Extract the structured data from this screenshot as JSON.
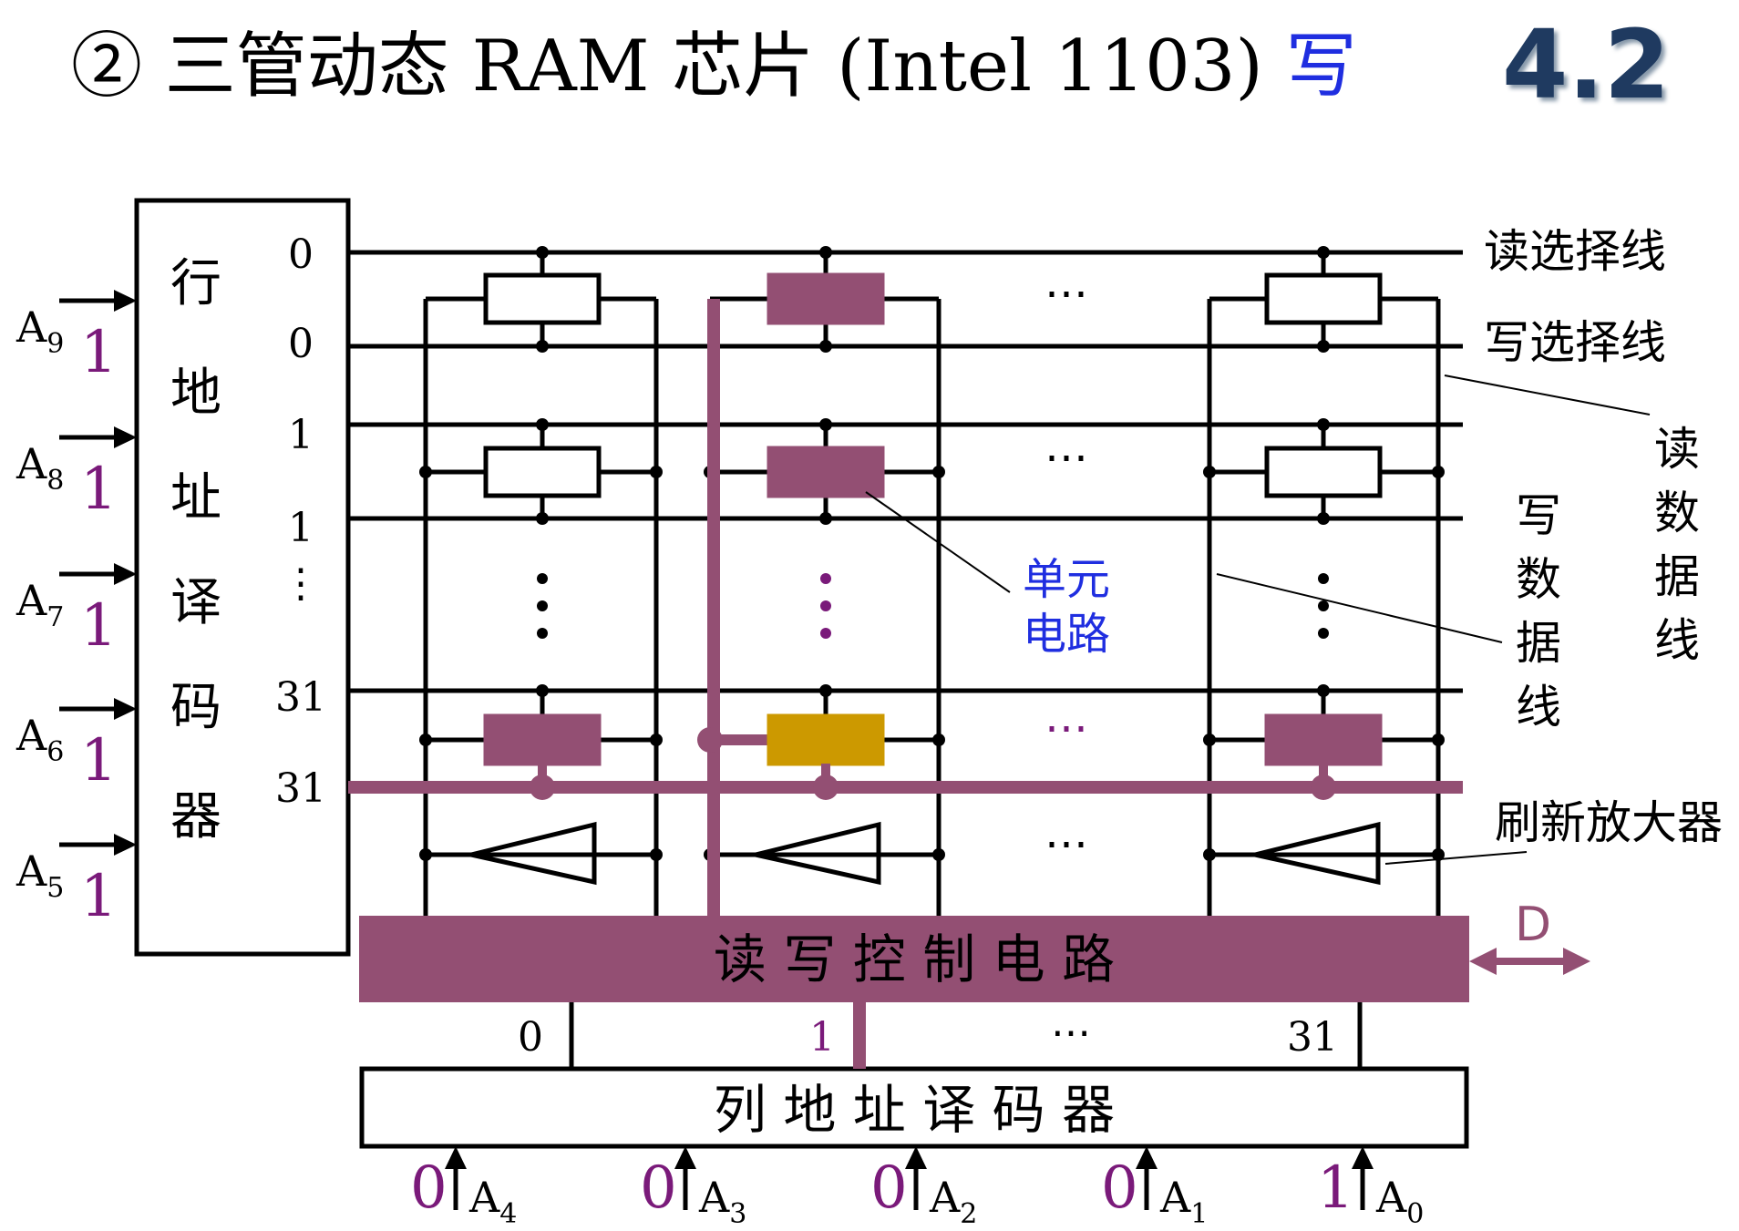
{
  "title": {
    "prefix": "② 三管动态 RAM 芯片 (Intel 1103) ",
    "mode": "写"
  },
  "section_number": "4.2",
  "row_decoder": {
    "chars": [
      "行",
      "地",
      "址",
      "译",
      "码",
      "器"
    ]
  },
  "row_lines": [
    "0",
    "0",
    "1",
    "1",
    "⋮",
    "31",
    "31"
  ],
  "address_inputs": [
    {
      "name": "A",
      "sub": "9",
      "value": "1"
    },
    {
      "name": "A",
      "sub": "8",
      "value": "1"
    },
    {
      "name": "A",
      "sub": "7",
      "value": "1"
    },
    {
      "name": "A",
      "sub": "6",
      "value": "1"
    },
    {
      "name": "A",
      "sub": "5",
      "value": "1"
    }
  ],
  "col_inputs": [
    {
      "name": "A",
      "sub": "4",
      "value": "0"
    },
    {
      "name": "A",
      "sub": "3",
      "value": "0"
    },
    {
      "name": "A",
      "sub": "2",
      "value": "0"
    },
    {
      "name": "A",
      "sub": "1",
      "value": "0"
    },
    {
      "name": "A",
      "sub": "0",
      "value": "1"
    }
  ],
  "labels": {
    "read_select": "读选择线",
    "write_select": "写选择线",
    "read_data": [
      "读",
      "数",
      "据",
      "线"
    ],
    "write_data": [
      "写",
      "数",
      "据",
      "线"
    ],
    "cell_circuit": [
      "单元",
      "电路"
    ],
    "refresh_amp": "刷新放大器",
    "rw_control": "读 写 控 制 电 路",
    "col_decoder": "列 地 址 译 码 器",
    "data_io": "D",
    "col_numbers": [
      "0",
      "1",
      "⋯",
      "31"
    ],
    "ellipsis_h": "⋯"
  },
  "colors": {
    "highlight": "#934f73",
    "selected_cell": "#cc9900",
    "line": "#000000",
    "accent": "#1f2ee0"
  }
}
